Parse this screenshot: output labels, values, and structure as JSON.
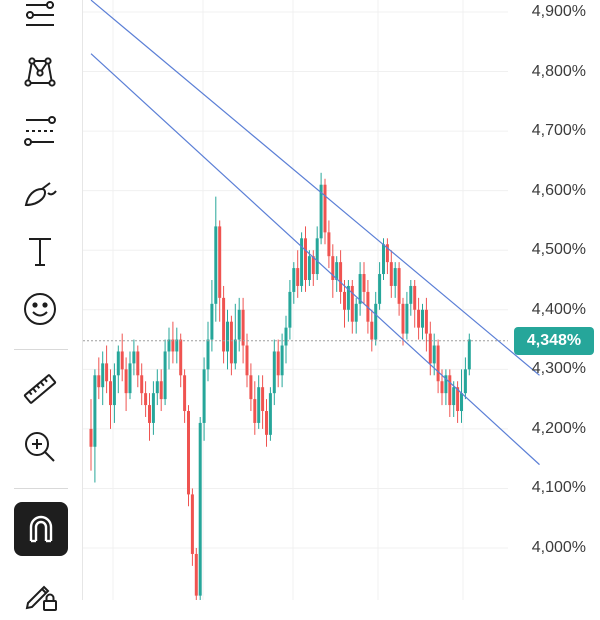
{
  "toolbar": {
    "tools": [
      {
        "name": "trend-line-tools-icon"
      },
      {
        "name": "pattern-tools-icon"
      },
      {
        "name": "fib-tools-icon"
      },
      {
        "name": "brush-tools-icon"
      },
      {
        "name": "text-tool-icon",
        "glyph": "T"
      },
      {
        "name": "emoji-tool-icon"
      },
      {
        "name": "ruler-tool-icon"
      },
      {
        "name": "zoom-in-tool-icon"
      },
      {
        "name": "magnet-tool-icon"
      },
      {
        "name": "lock-drawings-icon"
      }
    ]
  },
  "colors": {
    "up": "#26a69a",
    "down": "#ef5350",
    "channel": "#5b7fd6",
    "grid": "#f0f0f0",
    "badge": "#26a69a"
  },
  "axis": {
    "labels": [
      "4,900%",
      "4,800%",
      "4,700%",
      "4,600%",
      "4,500%",
      "4,400%",
      "4,300%",
      "4,200%",
      "4,100%",
      "4,000%"
    ]
  },
  "current_price": {
    "label": "4,348%",
    "value": 4.348
  },
  "chart_data": {
    "type": "candlestick",
    "ylim": [
      3.92,
      4.91
    ],
    "y_ticks": [
      4.9,
      4.8,
      4.7,
      4.6,
      4.5,
      4.4,
      4.3,
      4.2,
      4.1,
      4.0
    ],
    "channel_lines": [
      {
        "from": {
          "bar": 0,
          "price": 4.92
        },
        "to": {
          "bar": 115,
          "price": 4.29
        }
      },
      {
        "from": {
          "bar": 0,
          "price": 4.83
        },
        "to": {
          "bar": 115,
          "price": 4.14
        }
      }
    ],
    "candles": [
      [
        4.2,
        4.17,
        4.25,
        4.13
      ],
      [
        4.17,
        4.29,
        4.3,
        4.11
      ],
      [
        4.29,
        4.27,
        4.32,
        4.25
      ],
      [
        4.27,
        4.31,
        4.33,
        4.24
      ],
      [
        4.31,
        4.28,
        4.34,
        4.26
      ],
      [
        4.28,
        4.24,
        4.3,
        4.2
      ],
      [
        4.24,
        4.29,
        4.31,
        4.21
      ],
      [
        4.29,
        4.33,
        4.34,
        4.26
      ],
      [
        4.33,
        4.3,
        4.36,
        4.28
      ],
      [
        4.3,
        4.26,
        4.32,
        4.23
      ],
      [
        4.26,
        4.31,
        4.33,
        4.25
      ],
      [
        4.31,
        4.33,
        4.35,
        4.29
      ],
      [
        4.33,
        4.29,
        4.34,
        4.27
      ],
      [
        4.29,
        4.26,
        4.31,
        4.24
      ],
      [
        4.26,
        4.24,
        4.28,
        4.22
      ],
      [
        4.24,
        4.21,
        4.26,
        4.18
      ],
      [
        4.21,
        4.26,
        4.28,
        4.19
      ],
      [
        4.26,
        4.28,
        4.3,
        4.24
      ],
      [
        4.28,
        4.25,
        4.3,
        4.23
      ],
      [
        4.25,
        4.33,
        4.35,
        4.24
      ],
      [
        4.33,
        4.35,
        4.37,
        4.3
      ],
      [
        4.35,
        4.33,
        4.38,
        4.31
      ],
      [
        4.33,
        4.35,
        4.37,
        4.31
      ],
      [
        4.35,
        4.29,
        4.36,
        4.27
      ],
      [
        4.29,
        4.23,
        4.3,
        4.21
      ],
      [
        4.23,
        4.09,
        4.24,
        4.07
      ],
      [
        4.09,
        3.99,
        4.1,
        3.97
      ],
      [
        3.99,
        3.92,
        4.0,
        3.9
      ],
      [
        3.92,
        4.21,
        4.22,
        3.9
      ],
      [
        4.21,
        4.3,
        4.32,
        4.18
      ],
      [
        4.3,
        4.35,
        4.38,
        4.28
      ],
      [
        4.35,
        4.41,
        4.45,
        4.33
      ],
      [
        4.41,
        4.54,
        4.59,
        4.38
      ],
      [
        4.54,
        4.42,
        4.55,
        4.38
      ],
      [
        4.42,
        4.33,
        4.44,
        4.31
      ],
      [
        4.33,
        4.38,
        4.4,
        4.3
      ],
      [
        4.38,
        4.31,
        4.39,
        4.29
      ],
      [
        4.31,
        4.35,
        4.41,
        4.3
      ],
      [
        4.35,
        4.4,
        4.42,
        4.33
      ],
      [
        4.4,
        4.34,
        4.42,
        4.31
      ],
      [
        4.34,
        4.29,
        4.36,
        4.27
      ],
      [
        4.29,
        4.25,
        4.31,
        4.23
      ],
      [
        4.25,
        4.21,
        4.28,
        4.19
      ],
      [
        4.21,
        4.27,
        4.29,
        4.2
      ],
      [
        4.27,
        4.23,
        4.29,
        4.2
      ],
      [
        4.23,
        4.19,
        4.25,
        4.17
      ],
      [
        4.19,
        4.26,
        4.27,
        4.18
      ],
      [
        4.26,
        4.33,
        4.35,
        4.24
      ],
      [
        4.33,
        4.29,
        4.35,
        4.27
      ],
      [
        4.29,
        4.34,
        4.36,
        4.27
      ],
      [
        4.34,
        4.37,
        4.39,
        4.31
      ],
      [
        4.37,
        4.43,
        4.45,
        4.35
      ],
      [
        4.43,
        4.47,
        4.48,
        4.41
      ],
      [
        4.47,
        4.44,
        4.5,
        4.42
      ],
      [
        4.44,
        4.52,
        4.53,
        4.43
      ],
      [
        4.52,
        4.45,
        4.54,
        4.43
      ],
      [
        4.45,
        4.49,
        4.5,
        4.44
      ],
      [
        4.49,
        4.46,
        4.5,
        4.44
      ],
      [
        4.46,
        4.52,
        4.54,
        4.45
      ],
      [
        4.52,
        4.61,
        4.63,
        4.51
      ],
      [
        4.61,
        4.53,
        4.62,
        4.51
      ],
      [
        4.53,
        4.49,
        4.55,
        4.47
      ],
      [
        4.49,
        4.45,
        4.51,
        4.42
      ],
      [
        4.45,
        4.48,
        4.49,
        4.43
      ],
      [
        4.48,
        4.43,
        4.5,
        4.41
      ],
      [
        4.43,
        4.4,
        4.45,
        4.37
      ],
      [
        4.4,
        4.44,
        4.45,
        4.38
      ],
      [
        4.44,
        4.38,
        4.45,
        4.36
      ],
      [
        4.38,
        4.41,
        4.42,
        4.36
      ],
      [
        4.41,
        4.46,
        4.48,
        4.39
      ],
      [
        4.46,
        4.43,
        4.48,
        4.41
      ],
      [
        4.43,
        4.38,
        4.45,
        4.36
      ],
      [
        4.38,
        4.35,
        4.4,
        4.33
      ],
      [
        4.35,
        4.41,
        4.43,
        4.34
      ],
      [
        4.41,
        4.46,
        4.48,
        4.4
      ],
      [
        4.46,
        4.51,
        4.52,
        4.45
      ],
      [
        4.51,
        4.48,
        4.52,
        4.46
      ],
      [
        4.48,
        4.44,
        4.5,
        4.42
      ],
      [
        4.44,
        4.47,
        4.48,
        4.42
      ],
      [
        4.47,
        4.41,
        4.48,
        4.39
      ],
      [
        4.41,
        4.36,
        4.42,
        4.34
      ],
      [
        4.36,
        4.41,
        4.43,
        4.35
      ],
      [
        4.41,
        4.44,
        4.45,
        4.39
      ],
      [
        4.44,
        4.4,
        4.45,
        4.37
      ],
      [
        4.4,
        4.37,
        4.42,
        4.35
      ],
      [
        4.37,
        4.4,
        4.41,
        4.35
      ],
      [
        4.4,
        4.36,
        4.42,
        4.33
      ],
      [
        4.36,
        4.31,
        4.38,
        4.29
      ],
      [
        4.31,
        4.34,
        4.36,
        4.29
      ],
      [
        4.34,
        4.28,
        4.35,
        4.26
      ],
      [
        4.28,
        4.26,
        4.3,
        4.24
      ],
      [
        4.26,
        4.29,
        4.3,
        4.24
      ],
      [
        4.29,
        4.24,
        4.3,
        4.22
      ],
      [
        4.24,
        4.27,
        4.28,
        4.22
      ],
      [
        4.27,
        4.23,
        4.28,
        4.21
      ],
      [
        4.23,
        4.26,
        4.3,
        4.21
      ],
      [
        4.26,
        4.3,
        4.32,
        4.25
      ],
      [
        4.3,
        4.35,
        4.36,
        4.29
      ]
    ]
  }
}
